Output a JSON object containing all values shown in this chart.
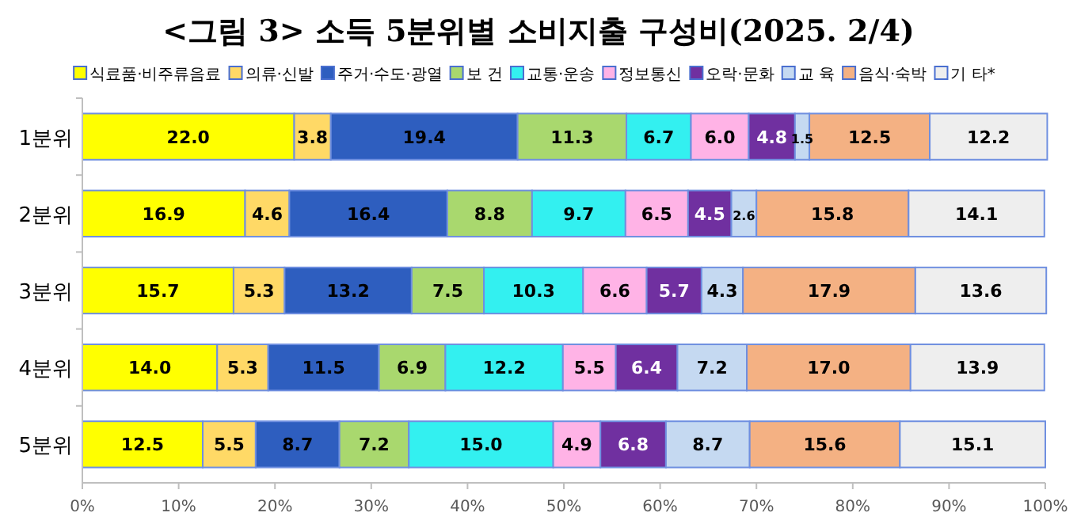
{
  "chart_data": {
    "type": "bar",
    "orientation": "horizontal",
    "stacked": true,
    "legend": "top",
    "grid": false,
    "title": "<그림 3> 소득 5분위별 소비지출 구성비(2025. 2/4)",
    "categories": [
      "1분위",
      "2분위",
      "3분위",
      "4분위",
      "5분위"
    ],
    "xlim": [
      0,
      100
    ],
    "xticks": [
      {
        "value": 0,
        "label": "0%"
      },
      {
        "value": 10,
        "label": "10%"
      },
      {
        "value": 20,
        "label": "20%"
      },
      {
        "value": 30,
        "label": "30%"
      },
      {
        "value": 40,
        "label": "40%"
      },
      {
        "value": 50,
        "label": "50%"
      },
      {
        "value": 60,
        "label": "60%"
      },
      {
        "value": 70,
        "label": "70%"
      },
      {
        "value": 80,
        "label": "80%"
      },
      {
        "value": 90,
        "label": "90%"
      },
      {
        "value": 100,
        "label": "100%"
      }
    ],
    "series": [
      {
        "name": "식료품·비주류음료",
        "color": "#ffff00",
        "values": [
          22.0,
          16.9,
          15.7,
          14.0,
          12.5
        ],
        "value_labels": [
          "22.0",
          "16.9",
          "15.7",
          "14.0",
          "12.5"
        ]
      },
      {
        "name": "의류·신발",
        "color": "#ffd966",
        "values": [
          3.8,
          4.6,
          5.3,
          5.3,
          5.5
        ],
        "value_labels": [
          "3.8",
          "4.6",
          "5.3",
          "5.3",
          "5.5"
        ]
      },
      {
        "name": "주거·수도·광열",
        "color": "#2e5ebf",
        "values": [
          19.4,
          16.4,
          13.2,
          11.5,
          8.7
        ],
        "value_labels": [
          "19.4",
          "16.4",
          "13.2",
          "11.5",
          "8.7"
        ]
      },
      {
        "name": "보 건",
        "color": "#a9d86e",
        "values": [
          11.3,
          8.8,
          7.5,
          6.9,
          7.2
        ],
        "value_labels": [
          "11.3",
          "8.8",
          "7.5",
          "6.9",
          "7.2"
        ]
      },
      {
        "name": "교통·운송",
        "color": "#33f0f0",
        "values": [
          6.7,
          9.7,
          10.3,
          12.2,
          15.0
        ],
        "value_labels": [
          "6.7",
          "9.7",
          "10.3",
          "12.2",
          "15.0"
        ]
      },
      {
        "name": "정보통신",
        "color": "#ffb3e6",
        "values": [
          6.0,
          6.5,
          6.6,
          5.5,
          4.9
        ],
        "value_labels": [
          "6.0",
          "6.5",
          "6.6",
          "5.5",
          "4.9"
        ]
      },
      {
        "name": "오락·문화",
        "color": "#7030a0",
        "values": [
          4.8,
          4.5,
          5.7,
          6.4,
          6.8
        ],
        "value_labels": [
          "4.8",
          "4.5",
          "5.7",
          "6.4",
          "6.8"
        ]
      },
      {
        "name": "교 육",
        "color": "#c5d9f1",
        "values": [
          1.5,
          2.6,
          4.3,
          7.2,
          8.7
        ],
        "value_labels": [
          "1.5",
          "2.6",
          "4.3",
          "7.2",
          "8.7"
        ]
      },
      {
        "name": "음식·숙박",
        "color": "#f4b183",
        "values": [
          12.5,
          15.8,
          17.9,
          17.0,
          15.6
        ],
        "value_labels": [
          "12.5",
          "15.8",
          "17.9",
          "17.0",
          "15.6"
        ]
      },
      {
        "name": "기 타*",
        "color": "#eeeeee",
        "values": [
          12.2,
          14.1,
          13.6,
          13.9,
          15.1
        ],
        "value_labels": [
          "12.2",
          "14.1",
          "13.6",
          "13.9",
          "15.1"
        ]
      }
    ]
  }
}
